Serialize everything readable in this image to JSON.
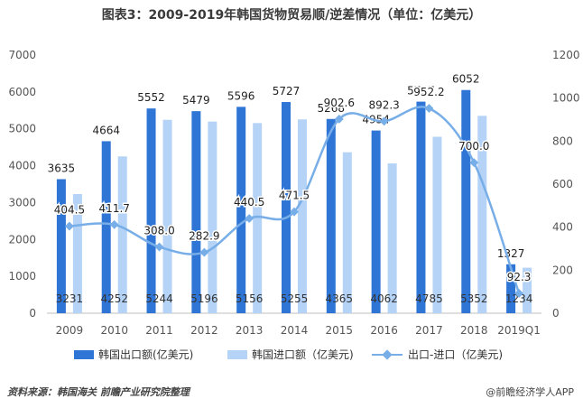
{
  "chart_data": {
    "type": "bar",
    "title": "图表3：2009-2019年韩国货物贸易顺/逆差情况（单位：亿美元）",
    "categories": [
      "2009",
      "2010",
      "2011",
      "2012",
      "2013",
      "2014",
      "2015",
      "2016",
      "2017",
      "2018",
      "2019Q1"
    ],
    "series": [
      {
        "name": "韩国出口额(亿美元)",
        "kind": "bar",
        "axis": "left",
        "color": "#2e75d6",
        "values": [
          3635,
          4664,
          5552,
          5479,
          5596,
          5727,
          5268,
          4954,
          5737,
          6052,
          1327
        ]
      },
      {
        "name": "韩国进口额（亿美元)",
        "kind": "bar",
        "axis": "left",
        "color": "#b4d3f7",
        "values": [
          3231,
          4252,
          5244,
          5196,
          5156,
          5255,
          4365,
          4062,
          4785,
          5352,
          1234
        ]
      },
      {
        "name": "出口-进口（亿美元)",
        "kind": "line",
        "axis": "right",
        "color": "#78aee8",
        "values": [
          404.5,
          411.7,
          308.0,
          282.9,
          440.5,
          471.5,
          902.6,
          892.3,
          952.2,
          700.0,
          92.3
        ]
      }
    ],
    "left_axis": {
      "ylim": [
        0,
        7000
      ],
      "ticks": [
        "0",
        "1000",
        "2000",
        "3000",
        "4000",
        "5000",
        "6000",
        "7000"
      ]
    },
    "right_axis": {
      "ylim": [
        0,
        1200
      ],
      "ticks": [
        "0",
        "200",
        "400",
        "600",
        "800",
        "1000",
        "1200"
      ]
    },
    "export_labels": [
      "3635",
      "4664",
      "5552",
      "5479",
      "5596",
      "5727",
      "5268",
      "4954",
      "5737",
      "6052",
      "1327"
    ],
    "import_labels": [
      "3231",
      "4252",
      "5244",
      "5196",
      "5156",
      "5255",
      "4365",
      "4062",
      "4785",
      "5352",
      "1234"
    ],
    "diff_labels": [
      "404.5",
      "411.7",
      "308.0",
      "282.9",
      "440.5",
      "471.5",
      "902.6",
      "892.3",
      "952.2",
      "700.0",
      "92.3"
    ],
    "legend_position": "bottom",
    "grid": false
  },
  "footer": {
    "source": "资料来源：韩国海关 前瞻产业研究院整理",
    "brand": "@前瞻经济学人APP"
  }
}
